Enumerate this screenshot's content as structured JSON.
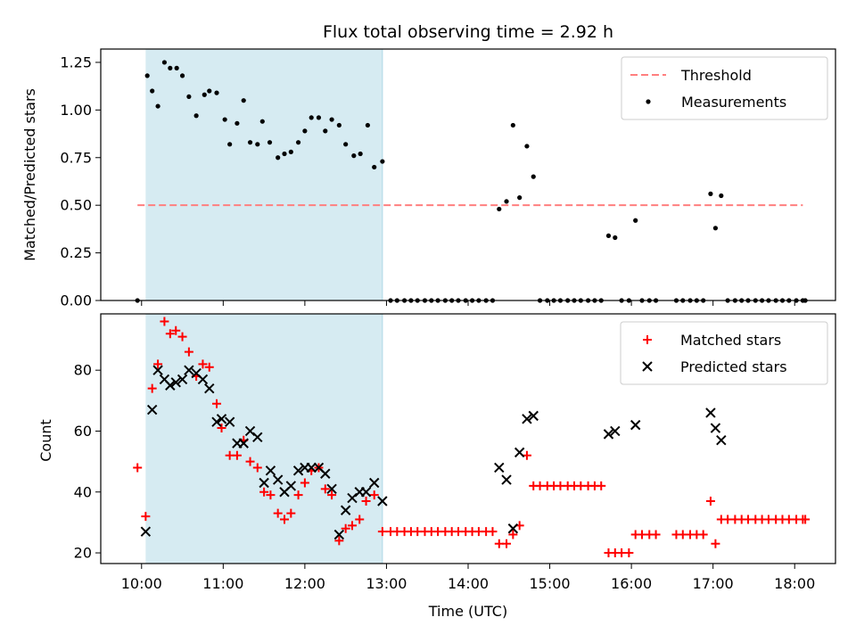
{
  "chart_data": [
    {
      "type": "scatter",
      "title": "Flux total observing time = 2.92 h",
      "xlabel": "",
      "ylabel": "Matched/Predicted stars",
      "xlim": [
        9.5,
        18.5
      ],
      "ylim": [
        0,
        1.32
      ],
      "yticks": [
        0.0,
        0.25,
        0.5,
        0.75,
        1.0,
        1.25
      ],
      "ytick_labels": [
        "0.00",
        "0.25",
        "0.50",
        "0.75",
        "1.00",
        "1.25"
      ],
      "shaded_span": [
        10.05,
        12.95
      ],
      "legend_position": "top-right",
      "threshold": {
        "name": "Threshold",
        "y": 0.5,
        "x_range": [
          9.95,
          18.1
        ],
        "color": "#ff7f7f",
        "style": "dashed"
      },
      "series": [
        {
          "name": "Measurements",
          "marker": "dot",
          "color": "#000000",
          "points": [
            [
              9.95,
              0.0
            ],
            [
              10.07,
              1.18
            ],
            [
              10.13,
              1.1
            ],
            [
              10.2,
              1.02
            ],
            [
              10.28,
              1.25
            ],
            [
              10.35,
              1.22
            ],
            [
              10.43,
              1.22
            ],
            [
              10.5,
              1.18
            ],
            [
              10.58,
              1.07
            ],
            [
              10.67,
              0.97
            ],
            [
              10.77,
              1.08
            ],
            [
              10.83,
              1.1
            ],
            [
              10.92,
              1.09
            ],
            [
              11.02,
              0.95
            ],
            [
              11.08,
              0.82
            ],
            [
              11.17,
              0.93
            ],
            [
              11.25,
              1.05
            ],
            [
              11.33,
              0.83
            ],
            [
              11.42,
              0.82
            ],
            [
              11.48,
              0.94
            ],
            [
              11.57,
              0.83
            ],
            [
              11.67,
              0.75
            ],
            [
              11.75,
              0.77
            ],
            [
              11.83,
              0.78
            ],
            [
              11.92,
              0.83
            ],
            [
              12.0,
              0.89
            ],
            [
              12.08,
              0.96
            ],
            [
              12.17,
              0.96
            ],
            [
              12.25,
              0.89
            ],
            [
              12.33,
              0.95
            ],
            [
              12.42,
              0.92
            ],
            [
              12.5,
              0.82
            ],
            [
              12.6,
              0.76
            ],
            [
              12.68,
              0.77
            ],
            [
              12.77,
              0.92
            ],
            [
              12.85,
              0.7
            ],
            [
              12.95,
              0.73
            ],
            [
              13.05,
              0.0
            ],
            [
              13.13,
              0.0
            ],
            [
              13.22,
              0.0
            ],
            [
              13.3,
              0.0
            ],
            [
              13.38,
              0.0
            ],
            [
              13.47,
              0.0
            ],
            [
              13.55,
              0.0
            ],
            [
              13.63,
              0.0
            ],
            [
              13.72,
              0.0
            ],
            [
              13.8,
              0.0
            ],
            [
              13.88,
              0.0
            ],
            [
              13.97,
              0.0
            ],
            [
              14.05,
              0.0
            ],
            [
              14.13,
              0.0
            ],
            [
              14.22,
              0.0
            ],
            [
              14.3,
              0.0
            ],
            [
              14.38,
              0.48
            ],
            [
              14.47,
              0.52
            ],
            [
              14.55,
              0.92
            ],
            [
              14.63,
              0.54
            ],
            [
              14.72,
              0.81
            ],
            [
              14.8,
              0.65
            ],
            [
              14.88,
              0.0
            ],
            [
              14.97,
              0.0
            ],
            [
              15.05,
              0.0
            ],
            [
              15.13,
              0.0
            ],
            [
              15.22,
              0.0
            ],
            [
              15.3,
              0.0
            ],
            [
              15.38,
              0.0
            ],
            [
              15.47,
              0.0
            ],
            [
              15.55,
              0.0
            ],
            [
              15.63,
              0.0
            ],
            [
              15.72,
              0.34
            ],
            [
              15.8,
              0.33
            ],
            [
              15.88,
              0.0
            ],
            [
              15.97,
              0.0
            ],
            [
              16.05,
              0.42
            ],
            [
              16.13,
              0.0
            ],
            [
              16.22,
              0.0
            ],
            [
              16.3,
              0.0
            ],
            [
              16.55,
              0.0
            ],
            [
              16.63,
              0.0
            ],
            [
              16.72,
              0.0
            ],
            [
              16.8,
              0.0
            ],
            [
              16.88,
              0.0
            ],
            [
              16.97,
              0.56
            ],
            [
              17.03,
              0.38
            ],
            [
              17.1,
              0.55
            ],
            [
              17.18,
              0.0
            ],
            [
              17.27,
              0.0
            ],
            [
              17.35,
              0.0
            ],
            [
              17.43,
              0.0
            ],
            [
              17.52,
              0.0
            ],
            [
              17.6,
              0.0
            ],
            [
              17.68,
              0.0
            ],
            [
              17.77,
              0.0
            ],
            [
              17.85,
              0.0
            ],
            [
              17.93,
              0.0
            ],
            [
              18.02,
              0.0
            ],
            [
              18.1,
              0.0
            ],
            [
              18.13,
              0.0
            ]
          ]
        }
      ]
    },
    {
      "type": "scatter",
      "title": "",
      "xlabel": "Time (UTC)",
      "ylabel": "Count",
      "xlim": [
        9.5,
        18.5
      ],
      "ylim": [
        16.5,
        98.5
      ],
      "xticks": [
        10,
        11,
        12,
        13,
        14,
        15,
        16,
        17,
        18
      ],
      "xtick_labels": [
        "10:00",
        "11:00",
        "12:00",
        "13:00",
        "14:00",
        "15:00",
        "16:00",
        "17:00",
        "18:00"
      ],
      "yticks": [
        20,
        40,
        60,
        80
      ],
      "ytick_labels": [
        "20",
        "40",
        "60",
        "80"
      ],
      "shaded_span": [
        10.05,
        12.95
      ],
      "legend_position": "top-right",
      "series": [
        {
          "name": "Matched stars",
          "marker": "plus",
          "color": "#ff0000",
          "points": [
            [
              9.95,
              48
            ],
            [
              10.05,
              32
            ],
            [
              10.13,
              74
            ],
            [
              10.2,
              82
            ],
            [
              10.28,
              96
            ],
            [
              10.35,
              92
            ],
            [
              10.42,
              93
            ],
            [
              10.5,
              91
            ],
            [
              10.58,
              86
            ],
            [
              10.67,
              78
            ],
            [
              10.75,
              82
            ],
            [
              10.83,
              81
            ],
            [
              10.92,
              69
            ],
            [
              10.98,
              61
            ],
            [
              11.08,
              52
            ],
            [
              11.17,
              52
            ],
            [
              11.25,
              57
            ],
            [
              11.33,
              50
            ],
            [
              11.42,
              48
            ],
            [
              11.5,
              40
            ],
            [
              11.58,
              39
            ],
            [
              11.67,
              33
            ],
            [
              11.75,
              31
            ],
            [
              11.83,
              33
            ],
            [
              11.92,
              39
            ],
            [
              12.0,
              43
            ],
            [
              12.08,
              47
            ],
            [
              12.17,
              48
            ],
            [
              12.25,
              41
            ],
            [
              12.33,
              39
            ],
            [
              12.42,
              24
            ],
            [
              12.5,
              28
            ],
            [
              12.58,
              29
            ],
            [
              12.67,
              31
            ],
            [
              12.75,
              37
            ],
            [
              12.85,
              39
            ],
            [
              12.95,
              27
            ],
            [
              13.05,
              27
            ],
            [
              13.13,
              27
            ],
            [
              13.22,
              27
            ],
            [
              13.3,
              27
            ],
            [
              13.38,
              27
            ],
            [
              13.47,
              27
            ],
            [
              13.55,
              27
            ],
            [
              13.63,
              27
            ],
            [
              13.72,
              27
            ],
            [
              13.8,
              27
            ],
            [
              13.88,
              27
            ],
            [
              13.97,
              27
            ],
            [
              14.05,
              27
            ],
            [
              14.13,
              27
            ],
            [
              14.22,
              27
            ],
            [
              14.3,
              27
            ],
            [
              14.38,
              23
            ],
            [
              14.47,
              23
            ],
            [
              14.55,
              26
            ],
            [
              14.63,
              29
            ],
            [
              14.72,
              52
            ],
            [
              14.8,
              42
            ],
            [
              14.88,
              42
            ],
            [
              14.97,
              42
            ],
            [
              15.05,
              42
            ],
            [
              15.13,
              42
            ],
            [
              15.22,
              42
            ],
            [
              15.3,
              42
            ],
            [
              15.38,
              42
            ],
            [
              15.47,
              42
            ],
            [
              15.55,
              42
            ],
            [
              15.63,
              42
            ],
            [
              15.72,
              20
            ],
            [
              15.8,
              20
            ],
            [
              15.88,
              20
            ],
            [
              15.97,
              20
            ],
            [
              16.05,
              26
            ],
            [
              16.13,
              26
            ],
            [
              16.22,
              26
            ],
            [
              16.3,
              26
            ],
            [
              16.55,
              26
            ],
            [
              16.63,
              26
            ],
            [
              16.72,
              26
            ],
            [
              16.8,
              26
            ],
            [
              16.88,
              26
            ],
            [
              16.97,
              37
            ],
            [
              17.03,
              23
            ],
            [
              17.1,
              31
            ],
            [
              17.18,
              31
            ],
            [
              17.27,
              31
            ],
            [
              17.35,
              31
            ],
            [
              17.43,
              31
            ],
            [
              17.52,
              31
            ],
            [
              17.6,
              31
            ],
            [
              17.68,
              31
            ],
            [
              17.77,
              31
            ],
            [
              17.85,
              31
            ],
            [
              17.93,
              31
            ],
            [
              18.02,
              31
            ],
            [
              18.1,
              31
            ],
            [
              18.13,
              31
            ]
          ]
        },
        {
          "name": "Predicted stars",
          "marker": "x",
          "color": "#000000",
          "points": [
            [
              10.05,
              27
            ],
            [
              10.13,
              67
            ],
            [
              10.2,
              80
            ],
            [
              10.28,
              77
            ],
            [
              10.35,
              75
            ],
            [
              10.42,
              76
            ],
            [
              10.5,
              77
            ],
            [
              10.58,
              80
            ],
            [
              10.67,
              79
            ],
            [
              10.75,
              77
            ],
            [
              10.83,
              74
            ],
            [
              10.92,
              63
            ],
            [
              10.98,
              64
            ],
            [
              11.08,
              63
            ],
            [
              11.17,
              56
            ],
            [
              11.25,
              56
            ],
            [
              11.33,
              60
            ],
            [
              11.42,
              58
            ],
            [
              11.5,
              43
            ],
            [
              11.58,
              47
            ],
            [
              11.67,
              44
            ],
            [
              11.75,
              40
            ],
            [
              11.83,
              42
            ],
            [
              11.92,
              47
            ],
            [
              12.0,
              48
            ],
            [
              12.08,
              48
            ],
            [
              12.17,
              48
            ],
            [
              12.25,
              46
            ],
            [
              12.33,
              41
            ],
            [
              12.42,
              26
            ],
            [
              12.5,
              34
            ],
            [
              12.58,
              38
            ],
            [
              12.67,
              40
            ],
            [
              12.75,
              40
            ],
            [
              12.85,
              43
            ],
            [
              12.95,
              37
            ],
            [
              14.38,
              48
            ],
            [
              14.47,
              44
            ],
            [
              14.55,
              28
            ],
            [
              14.63,
              53
            ],
            [
              14.72,
              64
            ],
            [
              14.8,
              65
            ],
            [
              15.72,
              59
            ],
            [
              15.8,
              60
            ],
            [
              16.05,
              62
            ],
            [
              16.97,
              66
            ],
            [
              17.03,
              61
            ],
            [
              17.1,
              57
            ]
          ]
        }
      ]
    }
  ]
}
